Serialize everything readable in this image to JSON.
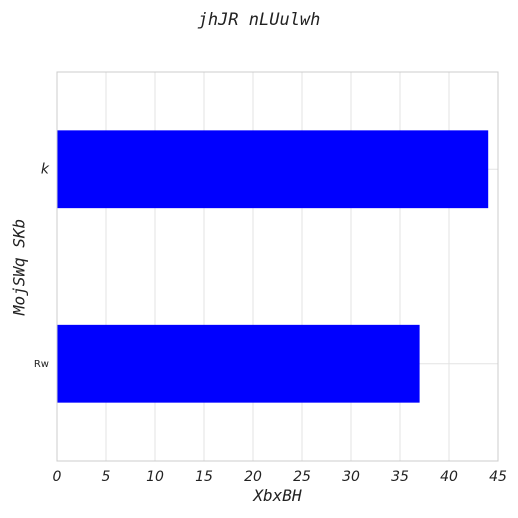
{
  "chart_data": {
    "type": "bar",
    "orientation": "horizontal",
    "title": "jhJR nLUulwh",
    "xlabel": "XbxBH",
    "ylabel": "MojSWq SKb",
    "categories": [
      "k",
      "Rw"
    ],
    "values": [
      44,
      37
    ],
    "xlim": [
      0,
      45
    ],
    "x_ticks": [
      0,
      5,
      10,
      15,
      20,
      25,
      30,
      35,
      40,
      45
    ],
    "bar_color": "#0000ff",
    "grid": true,
    "grid_color": "#e3e3e3",
    "frame_color": "#cccccc"
  }
}
